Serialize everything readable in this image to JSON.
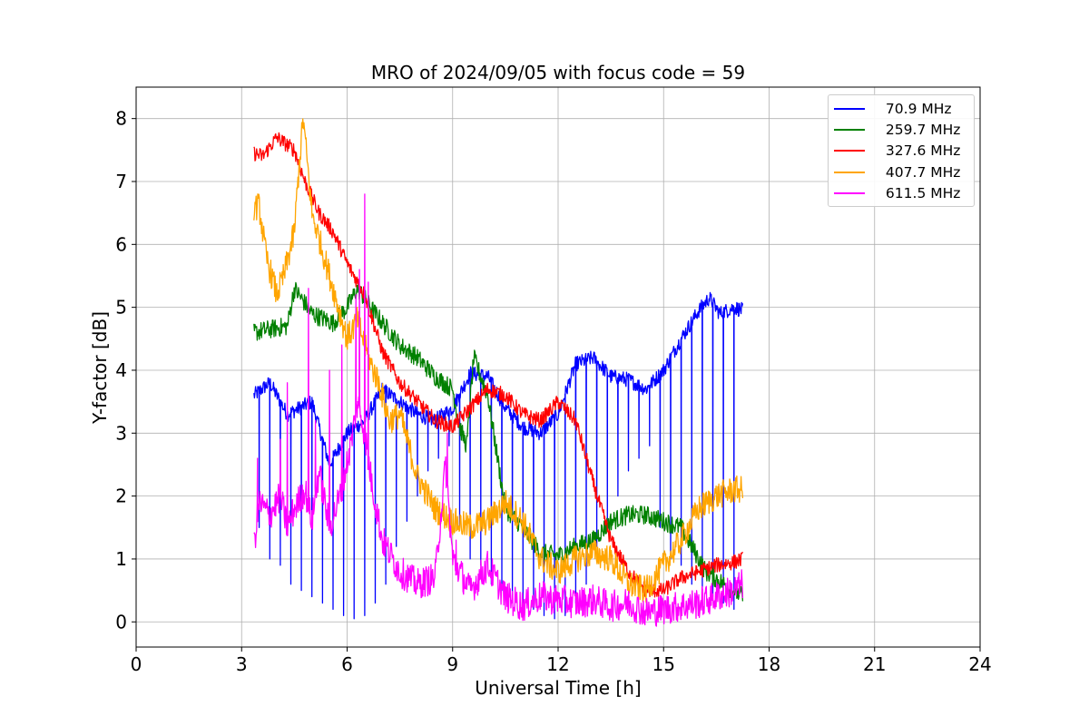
{
  "chart_data": {
    "type": "line",
    "title": "MRO of 2024/09/05 with focus code = 59",
    "xlabel": "Universal Time [h]",
    "ylabel": "Y-factor [dB]",
    "xlim": [
      0,
      24
    ],
    "ylim": [
      -0.4,
      8.5
    ],
    "xticks": [
      0,
      3,
      6,
      9,
      12,
      15,
      18,
      21,
      24
    ],
    "yticks": [
      0,
      1,
      2,
      3,
      4,
      5,
      6,
      7,
      8
    ],
    "grid": true,
    "legend_position": "top-right",
    "series": [
      {
        "name": " 70.9 MHz",
        "color": "#0000ff",
        "x": [
          3.35,
          3.8,
          4.3,
          5.0,
          5.5,
          6.0,
          6.5,
          7.0,
          7.5,
          8.0,
          8.5,
          9.0,
          9.5,
          10.0,
          10.5,
          11.0,
          11.5,
          12.0,
          12.5,
          13.0,
          13.5,
          14.0,
          14.5,
          15.0,
          15.5,
          16.0,
          16.3,
          16.6,
          17.0,
          17.25
        ],
        "values": [
          3.6,
          3.8,
          3.3,
          3.5,
          2.5,
          3.0,
          3.2,
          3.7,
          3.5,
          3.3,
          3.2,
          3.4,
          3.95,
          3.9,
          3.4,
          3.1,
          3.0,
          3.3,
          4.1,
          4.2,
          3.9,
          3.85,
          3.7,
          4.0,
          4.5,
          4.95,
          5.15,
          4.9,
          5.0,
          4.95
        ],
        "dip_spacing_h": 0.3,
        "dip_floor": [
          1.5,
          1.0,
          0.9,
          0.6,
          0.5,
          0.4,
          0.3,
          0.2,
          0.1,
          0.05,
          0.1,
          0.3,
          0.6,
          1.2,
          1.6,
          2.0,
          2.4,
          2.6,
          2.8
        ]
      },
      {
        "name": " 259.7 MHz",
        "color": "#008000",
        "x": [
          3.35,
          3.8,
          4.3,
          4.5,
          5.0,
          5.6,
          6.0,
          6.3,
          6.8,
          7.5,
          8.0,
          8.5,
          9.0,
          9.2,
          9.4,
          9.6,
          10.0,
          10.5,
          11.0,
          11.5,
          12.0,
          12.5,
          13.0,
          13.5,
          14.0,
          14.5,
          15.0,
          15.5,
          15.9,
          16.2,
          17.25
        ],
        "values": [
          4.6,
          4.65,
          4.7,
          5.3,
          4.9,
          4.75,
          5.0,
          5.3,
          4.9,
          4.4,
          4.2,
          3.9,
          3.7,
          3.1,
          2.8,
          4.2,
          3.6,
          1.8,
          1.5,
          1.1,
          1.05,
          1.2,
          1.3,
          1.6,
          1.7,
          1.7,
          1.6,
          1.5,
          1.1,
          0.8,
          0.4
        ]
      },
      {
        "name": " 327.6 MHz",
        "color": "#ff0000",
        "x": [
          3.35,
          3.6,
          4.0,
          4.5,
          4.8,
          5.2,
          5.6,
          6.0,
          6.5,
          7.0,
          7.5,
          8.0,
          8.5,
          9.0,
          9.5,
          10.0,
          10.5,
          11.0,
          11.5,
          12.0,
          12.5,
          13.0,
          13.5,
          14.0,
          14.5,
          15.0,
          15.5,
          16.0,
          16.5,
          17.0,
          17.25
        ],
        "values": [
          7.45,
          7.4,
          7.7,
          7.5,
          7.0,
          6.5,
          6.2,
          5.7,
          5.2,
          4.3,
          3.8,
          3.5,
          3.2,
          3.1,
          3.4,
          3.7,
          3.6,
          3.3,
          3.2,
          3.5,
          3.2,
          2.2,
          1.3,
          0.8,
          0.5,
          0.5,
          0.7,
          0.8,
          0.9,
          0.95,
          1.0
        ]
      },
      {
        "name": " 407.7 MHz",
        "color": "#ffa500",
        "x": [
          3.35,
          3.5,
          3.7,
          4.0,
          4.2,
          4.5,
          4.6,
          4.75,
          5.0,
          5.5,
          6.0,
          6.3,
          6.6,
          6.9,
          7.2,
          7.5,
          8.0,
          8.5,
          9.0,
          9.5,
          10.0,
          10.5,
          11.0,
          11.5,
          12.0,
          12.5,
          13.0,
          13.5,
          14.0,
          14.5,
          15.0,
          15.5,
          16.0,
          16.5,
          17.0,
          17.25
        ],
        "values": [
          6.6,
          6.6,
          5.8,
          5.2,
          5.5,
          6.2,
          7.0,
          8.0,
          6.5,
          5.5,
          4.5,
          4.8,
          4.2,
          3.8,
          3.2,
          3.3,
          2.3,
          1.8,
          1.6,
          1.5,
          1.6,
          1.9,
          1.6,
          1.0,
          0.8,
          1.0,
          1.1,
          1.0,
          0.6,
          0.5,
          0.9,
          1.3,
          1.8,
          2.0,
          2.1,
          2.1
        ]
      },
      {
        "name": " 611.5 MHz",
        "color": "#ff00ff",
        "x": [
          3.35,
          3.5,
          3.8,
          4.1,
          4.3,
          4.5,
          4.8,
          5.0,
          5.2,
          5.5,
          5.8,
          6.1,
          6.3,
          6.5,
          6.7,
          7.0,
          7.5,
          8.0,
          8.5,
          8.8,
          9.0,
          9.5,
          10.0,
          10.5,
          11.0,
          11.5,
          12.0,
          12.5,
          13.0,
          13.5,
          14.0,
          14.5,
          15.0,
          15.5,
          16.0,
          16.5,
          17.0,
          17.25
        ],
        "values": [
          1.2,
          1.9,
          1.7,
          2.0,
          1.5,
          1.8,
          2.1,
          1.6,
          2.4,
          1.5,
          2.0,
          2.8,
          3.5,
          3.0,
          2.2,
          1.3,
          0.8,
          0.6,
          0.7,
          2.5,
          1.0,
          0.5,
          0.9,
          0.4,
          0.25,
          0.4,
          0.35,
          0.3,
          0.35,
          0.25,
          0.3,
          0.15,
          0.2,
          0.25,
          0.3,
          0.4,
          0.5,
          0.6
        ],
        "spikes": [
          [
            3.45,
            2.6
          ],
          [
            4.1,
            2.9
          ],
          [
            4.3,
            3.8
          ],
          [
            4.9,
            5.3
          ],
          [
            5.1,
            3.2
          ],
          [
            5.5,
            4.0
          ],
          [
            5.85,
            4.4
          ],
          [
            6.25,
            5.2
          ],
          [
            6.35,
            5.6
          ],
          [
            6.5,
            6.8
          ],
          [
            6.6,
            5.4
          ],
          [
            8.85,
            3.0
          ],
          [
            9.1,
            1.3
          ]
        ]
      }
    ]
  }
}
